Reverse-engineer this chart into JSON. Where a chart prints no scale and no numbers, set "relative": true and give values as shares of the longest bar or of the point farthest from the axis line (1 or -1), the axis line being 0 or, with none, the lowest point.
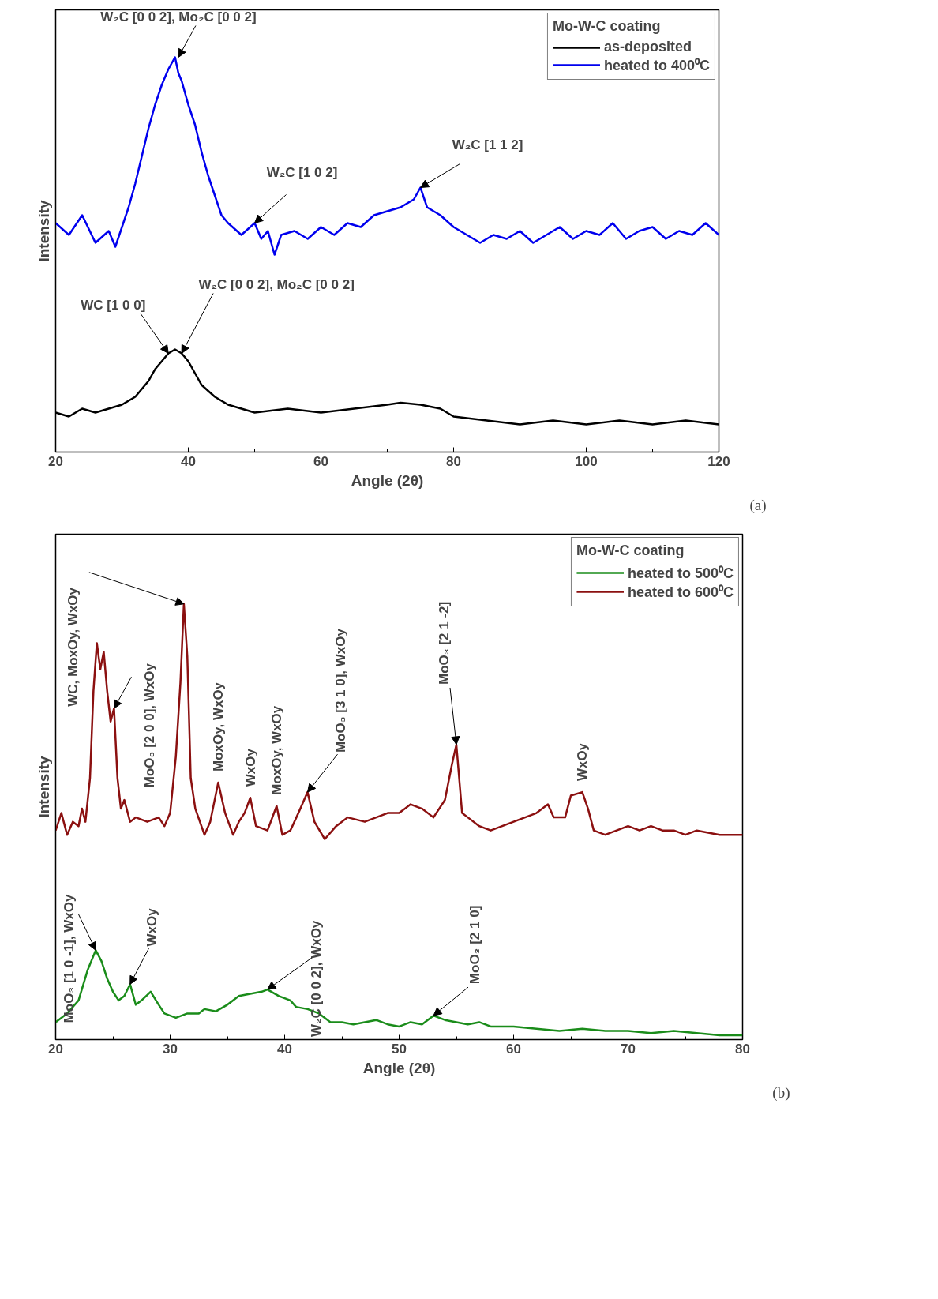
{
  "chart_data": [
    {
      "type": "line",
      "relative": true,
      "xlabel": "Angle (2θ)",
      "ylabel": "Intensity",
      "legend_title": "Mo-W-C coating",
      "legend": "top right",
      "xlim": [
        20,
        120
      ],
      "xticks": [
        20,
        40,
        60,
        80,
        100,
        120
      ],
      "grid": false,
      "line_style": "solid",
      "series": [
        {
          "name": "as-deposited",
          "color": "#000000",
          "x": [
            20,
            22,
            24,
            26,
            28,
            30,
            32,
            34,
            35,
            36,
            37,
            38,
            39,
            40,
            41,
            42,
            44,
            46,
            48,
            50,
            55,
            60,
            65,
            70,
            72,
            75,
            78,
            80,
            85,
            90,
            95,
            100,
            105,
            110,
            115,
            120
          ],
          "values": [
            0.1,
            0.09,
            0.11,
            0.1,
            0.11,
            0.12,
            0.14,
            0.18,
            0.21,
            0.23,
            0.25,
            0.26,
            0.25,
            0.23,
            0.2,
            0.17,
            0.14,
            0.12,
            0.11,
            0.1,
            0.11,
            0.1,
            0.11,
            0.12,
            0.125,
            0.12,
            0.11,
            0.09,
            0.08,
            0.07,
            0.08,
            0.07,
            0.08,
            0.07,
            0.08,
            0.07
          ]
        },
        {
          "name": "heated to 400⁰C",
          "color": "#0000ee",
          "x": [
            20,
            22,
            24,
            26,
            28,
            29,
            30,
            31,
            32,
            33,
            34,
            35,
            36,
            37,
            38,
            38.5,
            39,
            40,
            41,
            42,
            43,
            44,
            45,
            46,
            48,
            50,
            51,
            52,
            53,
            54,
            56,
            58,
            60,
            62,
            64,
            66,
            68,
            70,
            72,
            74,
            75,
            76,
            78,
            80,
            82,
            84,
            86,
            88,
            90,
            92,
            94,
            96,
            98,
            100,
            102,
            104,
            106,
            108,
            110,
            112,
            114,
            116,
            118,
            120
          ],
          "values": [
            0.58,
            0.55,
            0.6,
            0.53,
            0.56,
            0.52,
            0.57,
            0.62,
            0.68,
            0.75,
            0.82,
            0.88,
            0.93,
            0.97,
            1.0,
            0.96,
            0.94,
            0.88,
            0.83,
            0.76,
            0.7,
            0.65,
            0.6,
            0.58,
            0.55,
            0.58,
            0.54,
            0.56,
            0.5,
            0.55,
            0.56,
            0.54,
            0.57,
            0.55,
            0.58,
            0.57,
            0.6,
            0.61,
            0.62,
            0.64,
            0.67,
            0.62,
            0.6,
            0.57,
            0.55,
            0.53,
            0.55,
            0.54,
            0.56,
            0.53,
            0.55,
            0.57,
            0.54,
            0.56,
            0.55,
            0.58,
            0.54,
            0.56,
            0.57,
            0.54,
            0.56,
            0.55,
            0.58,
            0.55
          ]
        }
      ],
      "annotations": [
        {
          "text": "W₂C [0 0 2], Mo₂C [0 0 2]",
          "x": 38.5,
          "y": 1.0
        },
        {
          "text": "W₂C [1 0 2]",
          "x": 50,
          "y": 0.58
        },
        {
          "text": "W₂C [1 1 2]",
          "x": 75,
          "y": 0.67
        },
        {
          "text": "WC [1 0 0]",
          "x": 37,
          "y": 0.25
        },
        {
          "text": "W₂C [0 0 2], Mo₂C [0 0 2]",
          "x": 39,
          "y": 0.25
        },
        "(a)"
      ]
    },
    {
      "type": "line",
      "relative": true,
      "xlabel": "Angle (2θ)",
      "ylabel": "Intensity",
      "legend_title": "Mo-W-C coating",
      "legend": "top right",
      "xlim": [
        20,
        80
      ],
      "xticks": [
        20,
        30,
        40,
        50,
        60,
        70,
        80
      ],
      "grid": false,
      "line_style": "solid",
      "series": [
        {
          "name": "heated to 500⁰C",
          "color": "#1a8c1a",
          "x": [
            20,
            20.5,
            21,
            22,
            22.8,
            23.5,
            24,
            24.5,
            25,
            25.5,
            26,
            26.5,
            27,
            27.5,
            28.3,
            29,
            29.5,
            30.5,
            31.5,
            32.5,
            33,
            34,
            35,
            36,
            37,
            38,
            38.5,
            39.5,
            40.5,
            41,
            42,
            43,
            44,
            45,
            46,
            47,
            48,
            49,
            50,
            51,
            52,
            53,
            54,
            55,
            56,
            57,
            58,
            60,
            62,
            64,
            66,
            68,
            70,
            72,
            74,
            76,
            78,
            80
          ],
          "values": [
            0.04,
            0.05,
            0.06,
            0.09,
            0.16,
            0.205,
            0.18,
            0.14,
            0.11,
            0.09,
            0.1,
            0.127,
            0.08,
            0.09,
            0.11,
            0.08,
            0.06,
            0.05,
            0.06,
            0.06,
            0.07,
            0.065,
            0.08,
            0.1,
            0.105,
            0.11,
            0.115,
            0.1,
            0.09,
            0.075,
            0.07,
            0.06,
            0.04,
            0.04,
            0.035,
            0.04,
            0.045,
            0.035,
            0.03,
            0.04,
            0.035,
            0.055,
            0.045,
            0.04,
            0.035,
            0.04,
            0.03,
            0.03,
            0.025,
            0.02,
            0.025,
            0.02,
            0.02,
            0.015,
            0.02,
            0.015,
            0.01,
            0.01
          ]
        },
        {
          "name": "heated to 600⁰C",
          "color": "#8b1010",
          "x": [
            20,
            20.5,
            21,
            21.5,
            22,
            22.3,
            22.6,
            23,
            23.3,
            23.6,
            23.9,
            24.2,
            24.5,
            24.8,
            25.1,
            25.4,
            25.7,
            26,
            26.5,
            27,
            28,
            29,
            29.5,
            30,
            30.5,
            30.9,
            31.2,
            31.5,
            31.8,
            32.2,
            33,
            33.5,
            34.2,
            34.8,
            35.5,
            36,
            36.5,
            37,
            37.5,
            38.5,
            39.3,
            39.8,
            40.5,
            41.2,
            42,
            42.6,
            43.5,
            44.5,
            45.5,
            47,
            48,
            49,
            50,
            51,
            52,
            53,
            54,
            54.6,
            55,
            55.5,
            56,
            57,
            58,
            59,
            60,
            61,
            62,
            63,
            63.5,
            64.5,
            65,
            66,
            66.5,
            67,
            68,
            69,
            70,
            71,
            72,
            73,
            74,
            75,
            76,
            78,
            80
          ],
          "values": [
            0.48,
            0.52,
            0.47,
            0.5,
            0.49,
            0.53,
            0.5,
            0.6,
            0.8,
            0.91,
            0.85,
            0.89,
            0.8,
            0.73,
            0.76,
            0.6,
            0.53,
            0.55,
            0.5,
            0.51,
            0.5,
            0.51,
            0.49,
            0.52,
            0.65,
            0.82,
            1.0,
            0.88,
            0.6,
            0.53,
            0.47,
            0.5,
            0.59,
            0.52,
            0.47,
            0.5,
            0.52,
            0.555,
            0.49,
            0.48,
            0.536,
            0.47,
            0.48,
            0.52,
            0.568,
            0.5,
            0.46,
            0.49,
            0.51,
            0.5,
            0.51,
            0.52,
            0.52,
            0.54,
            0.53,
            0.51,
            0.55,
            0.63,
            0.677,
            0.52,
            0.51,
            0.49,
            0.48,
            0.49,
            0.5,
            0.51,
            0.52,
            0.54,
            0.51,
            0.51,
            0.56,
            0.568,
            0.53,
            0.48,
            0.47,
            0.48,
            0.49,
            0.48,
            0.49,
            0.48,
            0.48,
            0.47,
            0.48,
            0.47,
            0.47
          ]
        }
      ],
      "annotations": [
        {
          "text": "WC, MoxOy, WxOy",
          "x": 31.2,
          "y": 1.0
        },
        {
          "text": "MoO₃ [2 0 0], WxOy",
          "x": 25.1,
          "y": 0.76
        },
        {
          "text": "MoxOy, WxOy",
          "x": 34.2,
          "y": 0.59
        },
        {
          "text": "WxOy",
          "x": 37,
          "y": 0.555
        },
        {
          "text": "MoxOy, WxOy",
          "x": 39.3,
          "y": 0.536
        },
        {
          "text": "MoO₃ [3 1 0], WxOy",
          "x": 42,
          "y": 0.568
        },
        {
          "text": "MoO₃ [2 1 -2]",
          "x": 55,
          "y": 0.677
        },
        {
          "text": "WxOy",
          "x": 66,
          "y": 0.568
        },
        {
          "text": "MoO₃ [1 0 -1], WxOy",
          "x": 23.5,
          "y": 0.205
        },
        {
          "text": "WxOy",
          "x": 26.5,
          "y": 0.127
        },
        {
          "text": "W₂C [0 0 2], WxOy",
          "x": 38.5,
          "y": 0.115
        },
        {
          "text": "MoO₃ [2 1 0]",
          "x": 53,
          "y": 0.055
        },
        "(b)"
      ]
    }
  ]
}
